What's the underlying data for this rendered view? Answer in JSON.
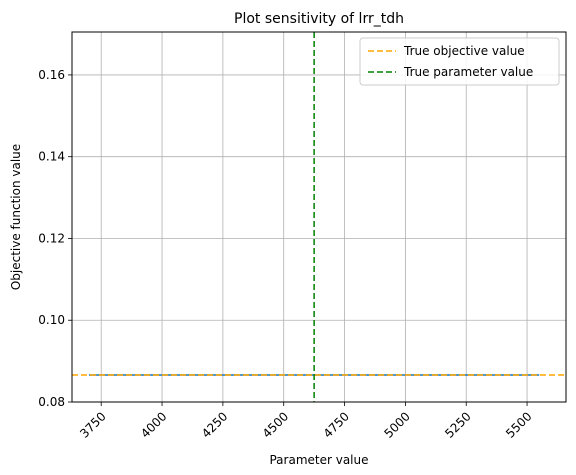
{
  "chart_data": {
    "type": "line",
    "title": "Plot sensitivity of lrr_tdh",
    "xlabel": "Parameter value",
    "ylabel": "Objective function value",
    "xlim": [
      3630,
      5660
    ],
    "ylim": [
      0.08,
      0.1705
    ],
    "x_ticks": [
      3750,
      4000,
      4250,
      4500,
      4750,
      5000,
      5250,
      5500
    ],
    "y_ticks": [
      0.08,
      0.1,
      0.12,
      0.14,
      0.16
    ],
    "y_tick_labels": [
      "0.08",
      "0.10",
      "0.12",
      "0.14",
      "0.16"
    ],
    "x_tick_rotation": 45,
    "grid": true,
    "legend_position": "upper-right",
    "series": [
      {
        "style": "solid",
        "color": "#1f77b4",
        "x": [
          3700,
          3750,
          4000,
          4250,
          4500,
          4750,
          5000,
          5250,
          5500,
          5550
        ],
        "y": [
          0.0866,
          0.0866,
          0.0866,
          0.0866,
          0.0866,
          0.0866,
          0.0866,
          0.0866,
          0.0866,
          0.0866
        ]
      }
    ],
    "reference_lines": [
      {
        "name": "True objective value",
        "orientation": "horizontal",
        "value": 0.0866,
        "color": "#ffa500",
        "style": "dashed"
      },
      {
        "name": "True parameter value",
        "orientation": "vertical",
        "value": 4625,
        "color": "#008000",
        "style": "dashed"
      }
    ]
  }
}
